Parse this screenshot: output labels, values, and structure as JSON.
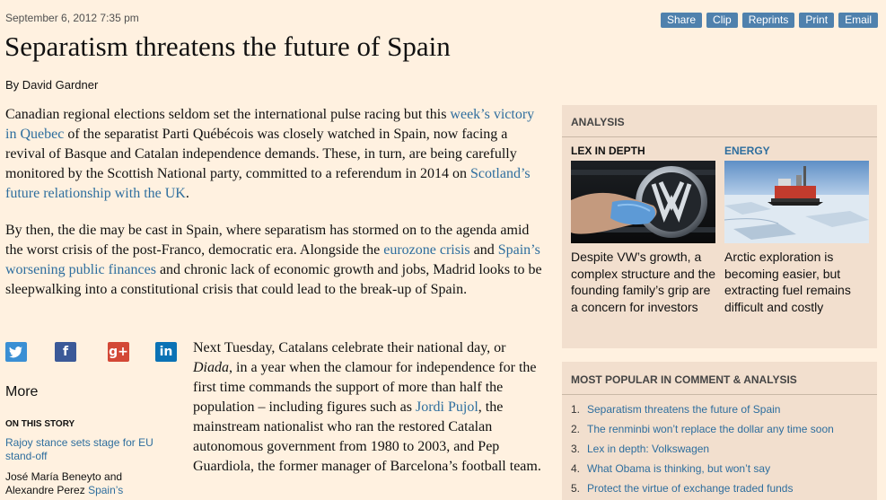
{
  "dateline": "September 6, 2012 7:35 pm",
  "toolbar": [
    "Share",
    "Clip",
    "Reprints",
    "Print",
    "Email"
  ],
  "headline": "Separatism threatens the future of Spain",
  "byline": "By David Gardner",
  "para1": {
    "t1": "Canadian regional elections seldom set the international pulse racing but this ",
    "l1": "week’s victory in Quebec",
    "t2": " of the separatist Parti Québécois was closely watched in Spain, now facing a revival of Basque and Catalan independence demands. These, in turn, are being carefully monitored by the Scottish National party, committed to a referendum in 2014 on ",
    "l2": "Scotland’s future relationship with the UK",
    "t3": "."
  },
  "para2": {
    "t1": "By then, the die may be cast in Spain, where separatism has stormed on to the agenda amid the worst crisis of the post-Franco, democratic era. Alongside the ",
    "l1": "eurozone crisis",
    "t2": " and ",
    "l2": "Spain’s worsening public finances",
    "t3": " and chronic lack of economic growth and jobs, Madrid looks to be sleepwalking into a constitutional crisis that could lead to the break-up of Spain."
  },
  "para3": {
    "t1": "Next Tuesday, Catalans celebrate their national day, or ",
    "em": "Diada",
    "t2": ", in a year when the clamour for independence for the first time commands the support of more than half the population – including figures such as ",
    "l1": "Jordi Pujol",
    "t3": ", the mainstream nationalist who ran the restored Catalan autonomous government from 1980 to 2003, and Pep Guardiola, the former manager of Barcelona’s football team."
  },
  "share_icons": {
    "twitter": "twitter-icon",
    "facebook": "facebook-icon",
    "googleplus": "google-plus-icon",
    "linkedin": "linkedin-icon",
    "facebook_glyph": "f",
    "googleplus_glyph": "g+",
    "linkedin_glyph": "in"
  },
  "more_label": "More",
  "on_story": {
    "heading": "ON THIS STORY",
    "item1": "Rajoy stance sets stage for EU stand-off",
    "item2_text": "José María Beneyto and Alexandre Perez ",
    "item2_link": "Spain’s"
  },
  "analysis": {
    "heading": "ANALYSIS",
    "cards": [
      {
        "kicker": "LEX IN DEPTH",
        "text": "Despite VW’s growth, a complex structure and the founding family’s grip are a concern for investors"
      },
      {
        "kicker": "ENERGY",
        "text": "Arctic exploration is becoming easier, but extracting fuel remains difficult and costly"
      }
    ]
  },
  "popular": {
    "heading": "MOST POPULAR IN COMMENT & ANALYSIS",
    "items": [
      {
        "num": "1.",
        "title": "Separatism threatens the future of Spain"
      },
      {
        "num": "2.",
        "title": "The renminbi won’t replace the dollar any time soon"
      },
      {
        "num": "3.",
        "title": "Lex in depth: Volkswagen"
      },
      {
        "num": "4.",
        "title": "What Obama is thinking, but won’t say"
      },
      {
        "num": "5.",
        "title": "Protect the virtue of exchange traded funds"
      }
    ]
  },
  "colors": {
    "page_background": "#fff1e0",
    "panel_background": "#f2dfce",
    "link": "#2e6e9e",
    "toolbar_button": "#4f81ad"
  }
}
